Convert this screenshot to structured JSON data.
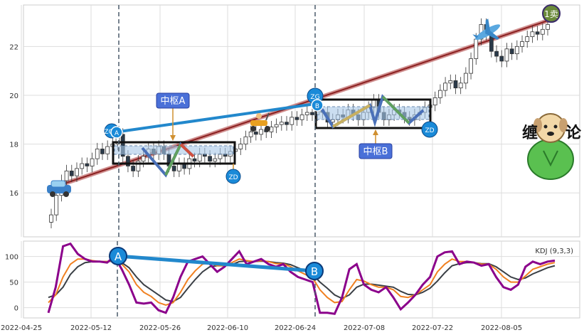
{
  "chart_data": [
    {
      "type": "candlestick",
      "panel": "price",
      "y_range": [
        14.2,
        23.7
      ],
      "y_ticks": [
        "16",
        "18",
        "20",
        "22"
      ],
      "x_dates": [
        "2022-04-25",
        "2022-05-12",
        "2022-05-26",
        "2022-06-10",
        "2022-06-24",
        "2022-07-08",
        "2022-07-22",
        "2022-08-05"
      ],
      "closes": [
        15.1,
        15.9,
        16.5,
        16.9,
        16.7,
        17.0,
        17.2,
        17.1,
        17.4,
        17.8,
        17.6,
        17.9,
        18.0,
        18.4,
        17.5,
        17.1,
        16.9,
        17.3,
        17.5,
        17.8,
        17.6,
        17.9,
        17.6,
        17.1,
        16.9,
        17.2,
        17.0,
        17.4,
        17.3,
        17.6,
        17.5,
        17.3,
        17.4,
        17.6,
        17.5,
        17.7,
        17.8,
        18.0,
        18.3,
        18.5,
        18.4,
        18.6,
        18.5,
        18.7,
        18.8,
        18.9,
        18.8,
        19.1,
        19.0,
        19.2,
        19.3,
        19.2,
        19.4,
        19.3,
        18.9,
        19.0,
        19.2,
        19.1,
        19.4,
        19.2,
        19.0,
        19.3,
        19.5,
        19.8,
        19.3,
        19.0,
        19.2,
        19.4,
        19.3,
        19.1,
        19.0,
        19.2,
        19.3,
        19.5,
        19.6,
        19.9,
        20.2,
        20.5,
        20.6,
        20.3,
        20.5,
        20.9,
        21.5,
        22.3,
        22.9,
        22.5,
        21.8,
        21.6,
        21.4,
        21.9,
        21.7,
        22.0,
        22.2,
        22.4,
        22.6,
        22.5,
        22.7,
        22.9
      ],
      "center_boxes": [
        {
          "label": "中枢A",
          "zg": "ZG",
          "zd": "ZD",
          "top": 17.85,
          "bottom": 17.05
        },
        {
          "label": "中枢B",
          "zg": "ZG",
          "zd": "ZD",
          "top": 19.6,
          "bottom": 18.6
        }
      ],
      "points": [
        "A",
        "B"
      ],
      "trend_label": "1卖"
    },
    {
      "type": "line",
      "panel": "indicator",
      "title": "KDJ (9,3,3)",
      "y_range": [
        -20,
        130
      ],
      "y_ticks": [
        "0",
        "50",
        "100"
      ],
      "series": [
        {
          "color": "#8b008b",
          "values": [
            -10,
            40,
            120,
            125,
            105,
            95,
            90,
            90,
            88,
            100,
            75,
            45,
            10,
            8,
            10,
            -5,
            -10,
            20,
            60,
            90,
            95,
            100,
            85,
            70,
            80,
            95,
            110,
            85,
            90,
            95,
            85,
            80,
            85,
            70,
            60,
            55,
            50,
            -10,
            -10,
            -12,
            20,
            75,
            85,
            45,
            35,
            30,
            40,
            20,
            -3,
            10,
            25,
            45,
            60,
            100,
            108,
            110,
            85,
            90,
            88,
            82,
            85,
            60,
            40,
            35,
            45,
            80,
            90,
            85,
            90,
            92
          ]
        },
        {
          "color": "#f08020",
          "values": [
            10,
            25,
            60,
            85,
            95,
            95,
            92,
            90,
            90,
            92,
            85,
            70,
            45,
            30,
            22,
            10,
            5,
            10,
            30,
            55,
            72,
            85,
            88,
            82,
            82,
            88,
            95,
            92,
            90,
            92,
            90,
            86,
            86,
            80,
            72,
            65,
            58,
            35,
            20,
            10,
            12,
            35,
            55,
            52,
            45,
            40,
            40,
            35,
            22,
            20,
            25,
            35,
            45,
            70,
            85,
            95,
            90,
            90,
            88,
            85,
            85,
            75,
            60,
            50,
            50,
            62,
            75,
            80,
            85,
            88
          ]
        },
        {
          "color": "#3a3f45",
          "values": [
            20,
            25,
            40,
            65,
            80,
            88,
            90,
            90,
            90,
            91,
            88,
            78,
            60,
            45,
            35,
            25,
            15,
            12,
            20,
            38,
            55,
            70,
            80,
            82,
            82,
            84,
            90,
            91,
            90,
            91,
            90,
            88,
            87,
            84,
            78,
            72,
            65,
            50,
            38,
            25,
            18,
            25,
            40,
            46,
            46,
            44,
            42,
            40,
            32,
            26,
            25,
            30,
            38,
            52,
            68,
            82,
            86,
            88,
            88,
            86,
            86,
            80,
            70,
            60,
            55,
            58,
            66,
            72,
            78,
            82
          ]
        }
      ],
      "points": [
        "A",
        "B"
      ]
    }
  ]
}
